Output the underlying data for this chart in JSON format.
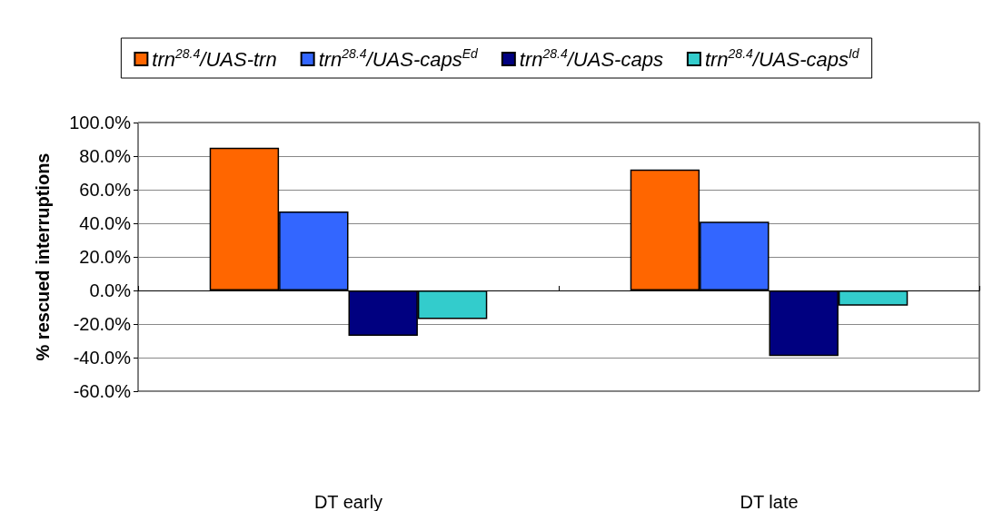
{
  "chart_data": {
    "type": "bar",
    "ylabel": "% rescued interruptions",
    "categories": [
      "DT early",
      "DT late"
    ],
    "series": [
      {
        "name": "trn$^{28.4}$/UAS-trn",
        "color": "#ff6600",
        "values": [
          85,
          72
        ]
      },
      {
        "name": "trn$^{28.4}$/UAS-caps$^{Ed}$",
        "color": "#3366ff",
        "values": [
          47,
          41
        ]
      },
      {
        "name": "trn$^{28.4}$/UAS-caps",
        "color": "#000080",
        "values": [
          -27,
          -39
        ]
      },
      {
        "name": "trn$^{28.4}$/UAS-caps$^{Id}$",
        "color": "#33cccc",
        "values": [
          -17,
          -9
        ]
      }
    ],
    "ylim": [
      -60,
      100
    ],
    "yticks": [
      {
        "value": -60,
        "label": "-60.0%"
      },
      {
        "value": -40,
        "label": "-40.0%"
      },
      {
        "value": -20,
        "label": "-20.0%"
      },
      {
        "value": 0,
        "label": "0.0%"
      },
      {
        "value": 20,
        "label": "20.0%"
      },
      {
        "value": 40,
        "label": "40.0%"
      },
      {
        "value": 60,
        "label": "60.0%"
      },
      {
        "value": 80,
        "label": "80.0%"
      },
      {
        "value": 100,
        "label": "100.0%"
      }
    ],
    "grid": "y",
    "legend": "top"
  }
}
